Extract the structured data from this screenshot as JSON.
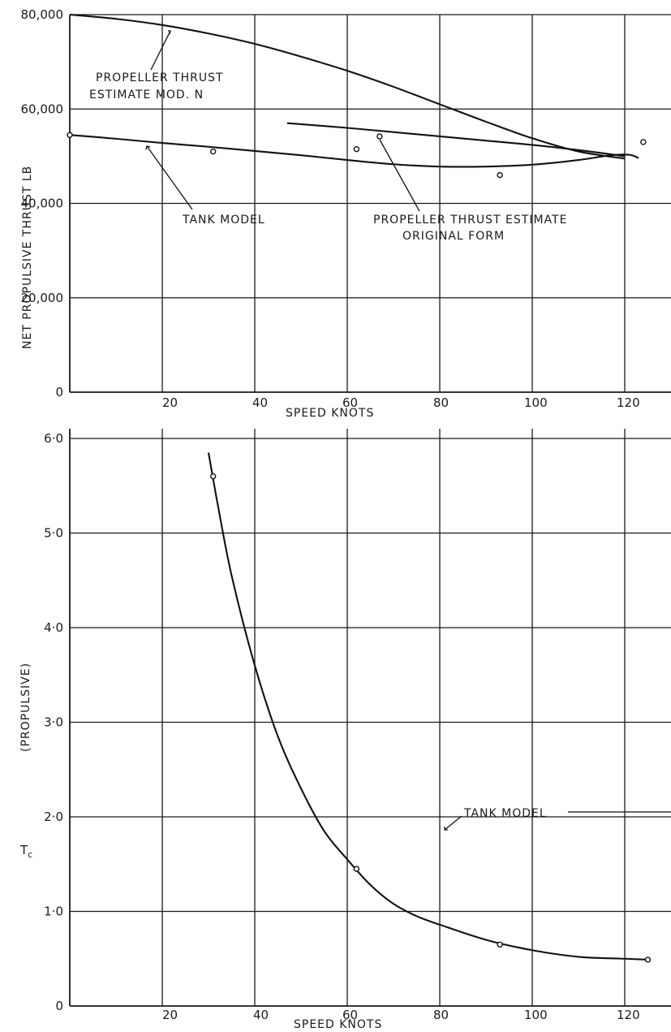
{
  "chart_data": [
    {
      "type": "line",
      "xlabel": "SPEED      KNOTS",
      "ylabel": "NET  PROPULSIVE  THRUST  LB",
      "xlim": [
        0,
        130
      ],
      "ylim": [
        0,
        80000
      ],
      "x_ticks": [
        "20",
        "40",
        "60",
        "80",
        "100",
        "120"
      ],
      "x_tick_values": [
        20,
        40,
        60,
        80,
        100,
        120
      ],
      "y_ticks": [
        "0",
        "20,000",
        "40,000",
        "60,000",
        "80,000"
      ],
      "y_tick_values": [
        0,
        20000,
        40000,
        60000,
        80000
      ],
      "grid": true,
      "series": [
        {
          "name": "PROPELLER THRUST ESTIMATE MOD. N",
          "x": [
            0,
            10,
            20,
            30,
            40,
            50,
            60,
            70,
            80,
            90,
            100,
            110,
            120
          ],
          "values": [
            80000,
            79100,
            77800,
            76000,
            73800,
            71100,
            68100,
            64700,
            61000,
            57300,
            53800,
            51000,
            49500
          ]
        },
        {
          "name": "PROPELLER THRUST ESTIMATE ORIGINAL FORM",
          "x": [
            47,
            60,
            70,
            80,
            90,
            100,
            110,
            120
          ],
          "values": [
            57000,
            56000,
            55100,
            54200,
            53300,
            52400,
            51300,
            50000
          ]
        },
        {
          "name": "TANK MODEL",
          "x": [
            0,
            10,
            20,
            30,
            40,
            50,
            60,
            70,
            80,
            90,
            100,
            110,
            117,
            121,
            123
          ],
          "values": [
            54500,
            53700,
            52800,
            52000,
            51100,
            50200,
            49200,
            48300,
            47800,
            47800,
            48200,
            49200,
            50200,
            50300,
            49600
          ]
        }
      ],
      "points": [
        {
          "x": 0,
          "y": 54500
        },
        {
          "x": 31,
          "y": 51000
        },
        {
          "x": 62,
          "y": 51500
        },
        {
          "x": 67,
          "y": 54200
        },
        {
          "x": 93,
          "y": 46000
        },
        {
          "x": 124,
          "y": 53000
        }
      ],
      "annotations": [
        "PROPELLER  THRUST",
        "ESTIMATE  MOD. N",
        "TANK  MODEL",
        "PROPELLER  THRUST  ESTIMATE",
        "ORIGINAL  FORM"
      ]
    },
    {
      "type": "line",
      "xlabel": "SPEED  KNOTS",
      "ylabel": "(PROPULSIVE)",
      "ylabel_symbol": "T",
      "ylabel_subscript": "c",
      "xlim": [
        0,
        130
      ],
      "ylim": [
        0,
        6.0
      ],
      "x_ticks": [
        "20",
        "40",
        "60",
        "80",
        "100",
        "120"
      ],
      "x_tick_values": [
        20,
        40,
        60,
        80,
        100,
        120
      ],
      "y_ticks": [
        "0",
        "1·0",
        "2·0",
        "3·0",
        "4·0",
        "5·0",
        "6·0"
      ],
      "y_tick_values": [
        0,
        1,
        2,
        3,
        4,
        5,
        6
      ],
      "grid": true,
      "series": [
        {
          "name": "TANK MODEL",
          "x": [
            30,
            32,
            35,
            40,
            45,
            50,
            55,
            60,
            65,
            70,
            75,
            80,
            90,
            100,
            110,
            120,
            125
          ],
          "values": [
            5.85,
            5.3,
            4.55,
            3.6,
            2.85,
            2.3,
            1.85,
            1.55,
            1.28,
            1.08,
            0.95,
            0.86,
            0.7,
            0.59,
            0.52,
            0.5,
            0.49
          ]
        }
      ],
      "points": [
        {
          "x": 31,
          "y": 5.6
        },
        {
          "x": 62,
          "y": 1.45
        },
        {
          "x": 93,
          "y": 0.65
        },
        {
          "x": 125,
          "y": 0.49
        }
      ],
      "annotations": [
        "TANK  MODEL"
      ]
    }
  ]
}
